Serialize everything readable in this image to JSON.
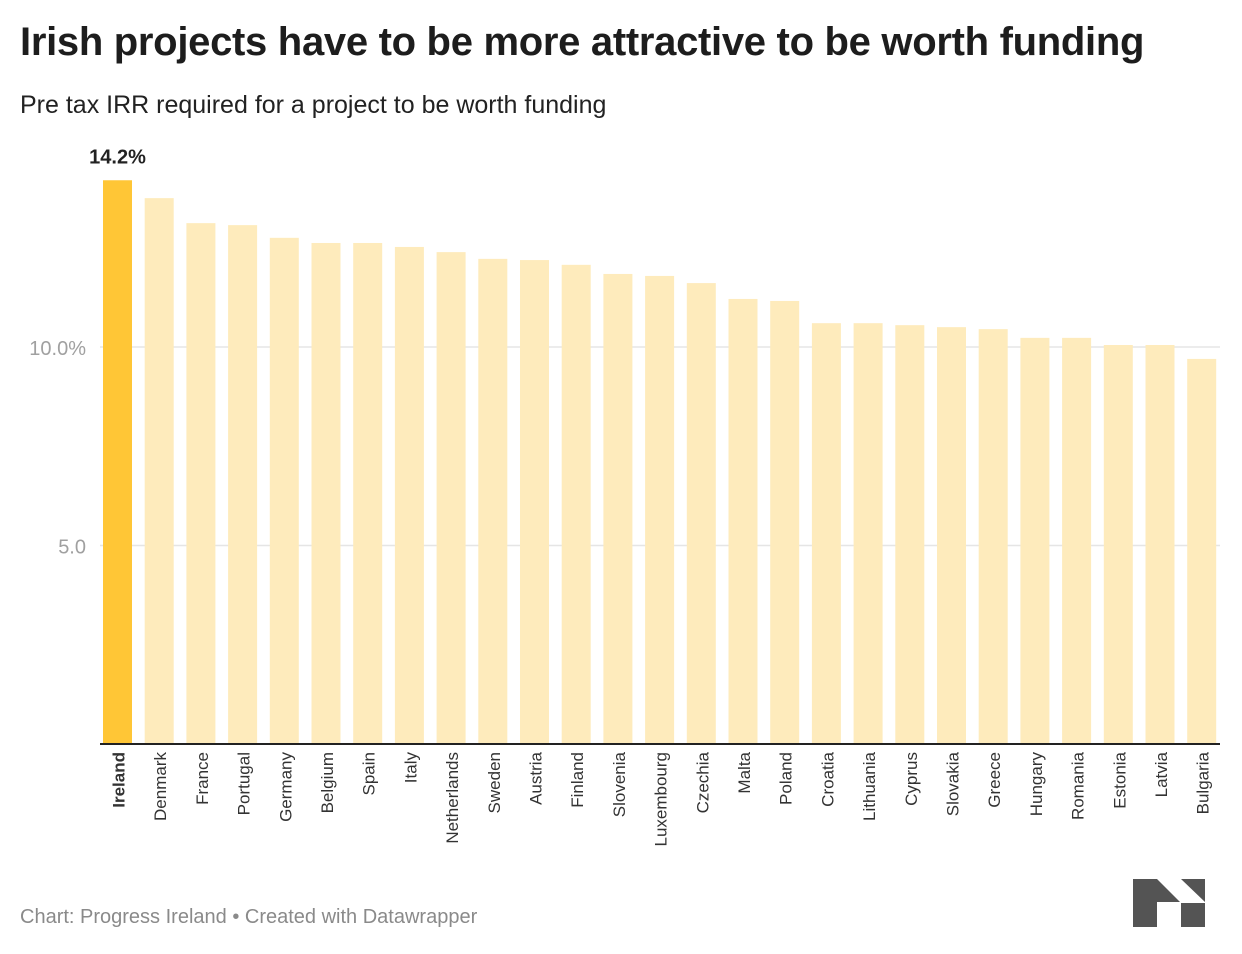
{
  "title": "Irish projects have to be more attractive to be worth funding",
  "subtitle": "Pre tax IRR required for a project to be worth funding",
  "footer": {
    "source": "Chart: Progress Ireland",
    "separator": " • ",
    "created": "Created with Datawrapper"
  },
  "logo": "Datawrapper",
  "colors": {
    "highlight": "#ffc636",
    "bar": "#feebbc",
    "grid": "#e5e5e5",
    "axis": "#222222",
    "tick_label": "#a0a0a0"
  },
  "chart_data": {
    "type": "bar",
    "title": "Irish projects have to be more attractive to be worth funding",
    "subtitle": "Pre tax IRR required for a project to be worth funding",
    "xlabel": "",
    "ylabel": "",
    "ylim": [
      0,
      14.2
    ],
    "yticks": [
      {
        "value": 5,
        "label": "5.0"
      },
      {
        "value": 10,
        "label": "10.0%"
      }
    ],
    "grid": true,
    "highlight": "Ireland",
    "annotations": [
      {
        "category": "Ireland",
        "label": "14.2%"
      }
    ],
    "categories": [
      "Ireland",
      "Denmark",
      "France",
      "Portugal",
      "Germany",
      "Belgium",
      "Spain",
      "Italy",
      "Netherlands",
      "Sweden",
      "Austria",
      "Finland",
      "Slovenia",
      "Luxembourg",
      "Czechia",
      "Malta",
      "Poland",
      "Croatia",
      "Lithuania",
      "Cyprus",
      "Slovakia",
      "Greece",
      "Hungary",
      "Romania",
      "Estonia",
      "Latvia",
      "Bulgaria"
    ],
    "values": [
      14.2,
      13.75,
      13.12,
      13.07,
      12.75,
      12.62,
      12.62,
      12.52,
      12.39,
      12.22,
      12.19,
      12.07,
      11.84,
      11.79,
      11.61,
      11.21,
      11.16,
      10.6,
      10.6,
      10.55,
      10.5,
      10.45,
      10.23,
      10.23,
      10.05,
      10.05,
      9.7
    ]
  }
}
